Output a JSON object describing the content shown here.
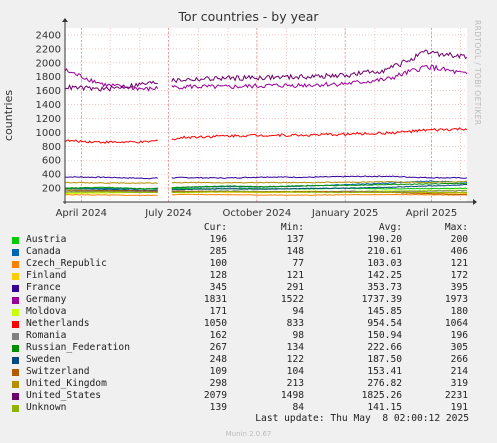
{
  "chart_data": {
    "type": "line",
    "title": "Tor countries - by year",
    "side_label": "RRDTOOL / TOBI OETIKER",
    "ylabel": "countries",
    "ylim": [
      0,
      2500
    ],
    "yticks": [
      "200",
      "400",
      "600",
      "800",
      "1000",
      "1200",
      "1400",
      "1600",
      "1800",
      "2000",
      "2200",
      "2400"
    ],
    "xticks": [
      "April 2024",
      "July 2024",
      "October 2024",
      "January 2025",
      "April 2025"
    ],
    "x_start": "2024-03-15",
    "x_end": "2025-05-08",
    "grid": true,
    "legend_header": {
      "cur": "Cur:",
      "min": "Min:",
      "avg": "Avg:",
      "max": "Max:"
    },
    "series": [
      {
        "name": "Austria",
        "color": "#00cc00",
        "cur": "196",
        "min": "137",
        "avg": "190.20",
        "max": "200",
        "values": [
          190,
          195,
          185,
          192,
          190,
          194,
          188,
          196,
          190,
          193,
          196
        ]
      },
      {
        "name": "Canada",
        "color": "#0066b3",
        "cur": "285",
        "min": "148",
        "avg": "210.61",
        "max": "406",
        "values": [
          200,
          190,
          185,
          210,
          220,
          215,
          230,
          250,
          270,
          300,
          285
        ]
      },
      {
        "name": "Czech_Republic",
        "color": "#ff8000",
        "cur": "100",
        "min": "77",
        "avg": "103.03",
        "max": "121",
        "values": [
          105,
          100,
          95,
          110,
          105,
          100,
          98,
          103,
          106,
          104,
          100
        ]
      },
      {
        "name": "Finland",
        "color": "#ffcc00",
        "cur": "128",
        "min": "121",
        "avg": "142.25",
        "max": "172",
        "values": [
          145,
          150,
          140,
          145,
          140,
          138,
          142,
          144,
          140,
          135,
          128
        ]
      },
      {
        "name": "France",
        "color": "#330099",
        "cur": "345",
        "min": "291",
        "avg": "353.73",
        "max": "395",
        "values": [
          360,
          355,
          340,
          350,
          345,
          360,
          355,
          365,
          370,
          350,
          345
        ]
      },
      {
        "name": "Germany",
        "color": "#990099",
        "cur": "1831",
        "min": "1522",
        "avg": "1737.39",
        "max": "1973",
        "values": [
          1890,
          1680,
          1620,
          1660,
          1650,
          1670,
          1680,
          1700,
          1760,
          1950,
          1831
        ]
      },
      {
        "name": "Moldova",
        "color": "#ccff00",
        "cur": "171",
        "min": "94",
        "avg": "145.85",
        "max": "180",
        "values": [
          120,
          130,
          140,
          135,
          150,
          145,
          155,
          150,
          160,
          165,
          171
        ]
      },
      {
        "name": "Netherlands",
        "color": "#ff0000",
        "cur": "1050",
        "min": "833",
        "avg": "954.54",
        "max": "1064",
        "values": [
          880,
          860,
          860,
          930,
          950,
          960,
          960,
          975,
          990,
          1030,
          1050
        ]
      },
      {
        "name": "Romania",
        "color": "#808080",
        "cur": "162",
        "min": "98",
        "avg": "150.94",
        "max": "196",
        "values": [
          150,
          155,
          145,
          150,
          160,
          150,
          145,
          155,
          150,
          158,
          162
        ]
      },
      {
        "name": "Russian_Federation",
        "color": "#008f00",
        "cur": "267",
        "min": "134",
        "avg": "222.66",
        "max": "305",
        "values": [
          200,
          210,
          190,
          215,
          230,
          220,
          235,
          240,
          250,
          260,
          267
        ]
      },
      {
        "name": "Sweden",
        "color": "#00487d",
        "cur": "248",
        "min": "122",
        "avg": "187.50",
        "max": "266",
        "values": [
          170,
          175,
          165,
          180,
          190,
          185,
          195,
          200,
          210,
          230,
          248
        ]
      },
      {
        "name": "Switzerland",
        "color": "#b35a00",
        "cur": "109",
        "min": "104",
        "avg": "153.41",
        "max": "214",
        "values": [
          170,
          165,
          160,
          155,
          150,
          150,
          148,
          145,
          140,
          120,
          109
        ]
      },
      {
        "name": "United_Kingdom",
        "color": "#b38f00",
        "cur": "298",
        "min": "213",
        "avg": "276.82",
        "max": "319",
        "values": [
          280,
          275,
          270,
          280,
          275,
          280,
          278,
          285,
          290,
          280,
          298
        ]
      },
      {
        "name": "United_States",
        "color": "#6b006b",
        "cur": "2079",
        "min": "1498",
        "avg": "1825.26",
        "max": "2231",
        "values": [
          1650,
          1620,
          1700,
          1760,
          1780,
          1790,
          1800,
          1820,
          1900,
          2150,
          2079
        ]
      },
      {
        "name": "Unknown",
        "color": "#8fb300",
        "cur": "139",
        "min": "84",
        "avg": "141.15",
        "max": "191",
        "values": [
          140,
          145,
          135,
          140,
          150,
          145,
          140,
          138,
          142,
          140,
          139
        ]
      }
    ]
  },
  "footer": {
    "last_update": "Last update: Thu May  8 02:00:12 2025",
    "munin": "Munin 2.0.67"
  }
}
